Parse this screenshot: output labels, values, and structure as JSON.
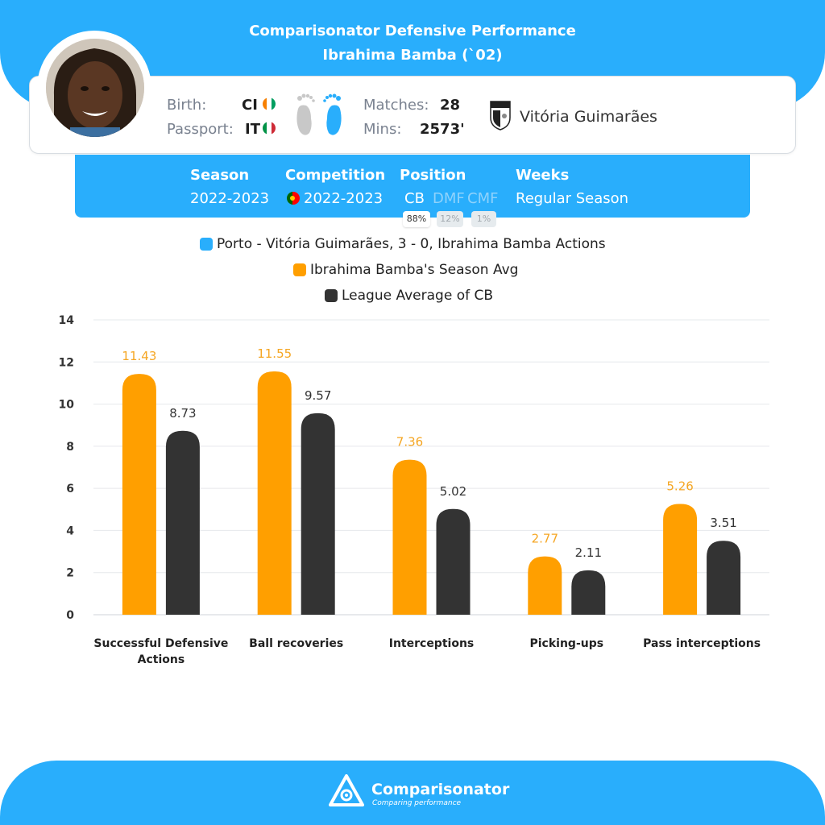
{
  "header": {
    "title": "Comparisonator Defensive Performance",
    "subtitle": "Ibrahima Bamba (`02)"
  },
  "player": {
    "birth_label": "Birth:",
    "birth_code": "CI",
    "passport_label": "Passport:",
    "passport_code": "IT",
    "matches_label": "Matches:",
    "matches_value": "28",
    "mins_label": "Mins:",
    "mins_value": "2573'",
    "club": "Vitória Guimarães",
    "flag_colors": {
      "CI": [
        "#f77f00",
        "#ffffff",
        "#009e60"
      ],
      "IT": [
        "#009246",
        "#ffffff",
        "#ce2b37"
      ]
    }
  },
  "info": {
    "season_label": "Season",
    "season_value": "2022-2023",
    "competition_label": "Competition",
    "competition_value": "2022-2023",
    "position_label": "Position",
    "positions": [
      {
        "name": "CB",
        "pct": "88%"
      },
      {
        "name": "DMF",
        "pct": "12%"
      },
      {
        "name": "CMF",
        "pct": "1%"
      }
    ],
    "weeks_label": "Weeks",
    "weeks_value": "Regular Season"
  },
  "legend": [
    {
      "label": "Porto - Vitória Guimarães, 3 - 0, Ibrahima Bamba Actions",
      "color": "#29aefc"
    },
    {
      "label": "Ibrahima Bamba's Season Avg",
      "color": "#ff9f00"
    },
    {
      "label": "League Average of CB",
      "color": "#333333"
    }
  ],
  "chart_data": {
    "type": "bar",
    "categories": [
      "Successful Defensive Actions",
      "Ball recoveries",
      "Interceptions",
      "Picking-ups",
      "Pass interceptions"
    ],
    "series": [
      {
        "name": "Ibrahima Bamba's Season Avg",
        "color": "#ff9f00",
        "label_color": "#f5a623",
        "values": [
          11.43,
          11.55,
          7.36,
          2.77,
          5.26
        ]
      },
      {
        "name": "League Average of CB",
        "color": "#333333",
        "label_color": "#333333",
        "values": [
          8.73,
          9.57,
          5.02,
          2.11,
          3.51
        ]
      }
    ],
    "ylim": [
      0,
      14
    ],
    "yticks": [
      0,
      2,
      4,
      6,
      8,
      10,
      12,
      14
    ],
    "grid": true
  },
  "footer": {
    "brand": "Comparisonator",
    "tagline": "Comparing performance"
  }
}
